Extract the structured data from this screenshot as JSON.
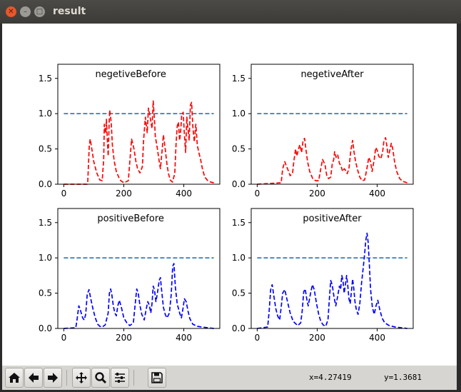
{
  "window": {
    "title": "result"
  },
  "chart_data": [
    {
      "type": "line",
      "title": "negetiveBefore",
      "xlim": [
        -20,
        520
      ],
      "ylim": [
        0,
        1.7
      ],
      "xticks": [
        0,
        200,
        400
      ],
      "yticks": [
        0.0,
        0.5,
        1.0,
        1.5
      ],
      "xtick_labels": [
        "0",
        "200",
        "400"
      ],
      "ytick_labels": [
        "0.0",
        "0.5",
        "1.0",
        "1.5"
      ],
      "title_placement": "inside-top-left",
      "series": [
        {
          "color": "#1f77b4",
          "style": "dashed",
          "x": [
            0,
            500
          ],
          "y": [
            1.0,
            1.0
          ]
        },
        {
          "color": "#ff0000",
          "style": "dashed",
          "x": [
            0,
            78,
            80,
            85,
            88,
            95,
            100,
            110,
            120,
            128,
            133,
            135,
            140,
            142,
            145,
            148,
            151,
            153,
            158,
            162,
            168,
            175,
            185,
            190,
            200,
            215,
            222,
            226,
            234,
            240,
            246,
            254,
            262,
            266,
            272,
            278,
            282,
            289,
            294,
            298,
            303,
            305,
            312,
            317,
            322,
            327,
            332,
            338,
            344,
            349,
            355,
            362,
            370,
            374,
            378,
            382,
            386,
            390,
            393,
            398,
            402,
            406,
            410,
            414,
            418,
            422,
            426,
            430,
            435,
            440,
            445,
            450,
            456,
            462,
            470,
            480,
            490,
            500
          ],
          "y": [
            0,
            0,
            0.04,
            0.55,
            0.64,
            0.46,
            0.32,
            0.16,
            0.06,
            0.05,
            0.35,
            0.85,
            0.72,
            0.92,
            0.63,
            0.4,
            0.85,
            1.05,
            0.88,
            0.55,
            0.33,
            0.18,
            0.08,
            0.05,
            0.02,
            0.05,
            0.42,
            0.64,
            0.5,
            0.33,
            0.22,
            0.16,
            0.25,
            0.62,
            0.95,
            0.73,
            1.08,
            0.92,
            0.79,
            1.18,
            0.85,
            0.68,
            0.5,
            0.35,
            0.22,
            0.45,
            0.7,
            0.5,
            0.28,
            0.15,
            0.06,
            0.03,
            0.15,
            0.55,
            0.82,
            0.88,
            0.62,
            0.78,
            0.98,
            1.02,
            0.7,
            0.45,
            0.95,
            0.78,
            0.62,
            1.12,
            1.16,
            0.82,
            0.6,
            0.85,
            0.55,
            0.45,
            0.35,
            0.22,
            0.1,
            0.05,
            0.03,
            0.02
          ]
        }
      ]
    },
    {
      "type": "line",
      "title": "negetiveAfter",
      "xlim": [
        -20,
        520
      ],
      "ylim": [
        0,
        1.7
      ],
      "xticks": [
        0,
        200,
        400
      ],
      "yticks": [
        0.0,
        0.5,
        1.0,
        1.5
      ],
      "xtick_labels": [
        "0",
        "200",
        "400"
      ],
      "ytick_labels": [
        "0.0",
        "0.5",
        "1.0",
        "1.5"
      ],
      "title_placement": "inside-top-center",
      "series": [
        {
          "color": "#1f77b4",
          "style": "dashed",
          "x": [
            0,
            500
          ],
          "y": [
            1.0,
            1.0
          ]
        },
        {
          "color": "#ff0000",
          "style": "dashed",
          "x": [
            0,
            80,
            85,
            92,
            96,
            103,
            110,
            118,
            122,
            128,
            132,
            138,
            142,
            148,
            153,
            158,
            163,
            168,
            175,
            185,
            195,
            205,
            212,
            218,
            226,
            232,
            238,
            245,
            250,
            255,
            258,
            263,
            268,
            274,
            280,
            285,
            290,
            294,
            300,
            306,
            312,
            318,
            323,
            328,
            335,
            342,
            350,
            358,
            365,
            372,
            378,
            383,
            390,
            395,
            400,
            405,
            412,
            418,
            422,
            428,
            432,
            437,
            442,
            447,
            452,
            458,
            465,
            475,
            485,
            500
          ],
          "y": [
            0,
            0.02,
            0.22,
            0.32,
            0.27,
            0.2,
            0.12,
            0.16,
            0.32,
            0.5,
            0.4,
            0.5,
            0.56,
            0.45,
            0.62,
            0.65,
            0.48,
            0.32,
            0.18,
            0.08,
            0.05,
            0.05,
            0.22,
            0.35,
            0.28,
            0.12,
            0.08,
            0.1,
            0.28,
            0.35,
            0.46,
            0.38,
            0.42,
            0.3,
            0.25,
            0.18,
            0.22,
            0.2,
            0.15,
            0.22,
            0.48,
            0.62,
            0.45,
            0.32,
            0.2,
            0.1,
            0.05,
            0.06,
            0.2,
            0.38,
            0.32,
            0.18,
            0.35,
            0.52,
            0.48,
            0.4,
            0.36,
            0.45,
            0.6,
            0.66,
            0.55,
            0.38,
            0.48,
            0.58,
            0.5,
            0.32,
            0.18,
            0.08,
            0.04,
            0.02
          ]
        }
      ]
    },
    {
      "type": "line",
      "title": "positiveBefore",
      "xlim": [
        -20,
        520
      ],
      "ylim": [
        0,
        1.7
      ],
      "xticks": [
        0,
        200,
        400
      ],
      "yticks": [
        0.0,
        0.5,
        1.0,
        1.5
      ],
      "xtick_labels": [
        "0",
        "200",
        "400"
      ],
      "ytick_labels": [
        "0.0",
        "0.5",
        "1.0",
        "1.5"
      ],
      "title_placement": "inside-top-left",
      "series": [
        {
          "color": "#1f77b4",
          "style": "dashed",
          "x": [
            0,
            500
          ],
          "y": [
            1.0,
            1.0
          ]
        },
        {
          "color": "#0000ff",
          "style": "dashed",
          "x": [
            0,
            40,
            45,
            50,
            54,
            58,
            63,
            68,
            73,
            78,
            84,
            90,
            97,
            105,
            113,
            120,
            128,
            138,
            148,
            152,
            156,
            160,
            165,
            170,
            175,
            180,
            185,
            192,
            200,
            210,
            220,
            232,
            238,
            243,
            248,
            254,
            260,
            268,
            275,
            280,
            285,
            290,
            294,
            298,
            302,
            307,
            312,
            318,
            322,
            326,
            332,
            338,
            344,
            352,
            358,
            363,
            367,
            372,
            378,
            386,
            392,
            398,
            402,
            408,
            414,
            420,
            430,
            445,
            460,
            480,
            500
          ],
          "y": [
            0,
            0.01,
            0.15,
            0.32,
            0.28,
            0.22,
            0.15,
            0.12,
            0.2,
            0.48,
            0.55,
            0.42,
            0.28,
            0.15,
            0.06,
            0.03,
            0.02,
            0.05,
            0.22,
            0.5,
            0.56,
            0.48,
            0.32,
            0.22,
            0.18,
            0.32,
            0.4,
            0.3,
            0.15,
            0.08,
            0.04,
            0.08,
            0.35,
            0.56,
            0.5,
            0.32,
            0.2,
            0.12,
            0.28,
            0.38,
            0.33,
            0.22,
            0.35,
            0.6,
            0.55,
            0.38,
            0.5,
            0.68,
            0.72,
            0.55,
            0.3,
            0.2,
            0.15,
            0.22,
            0.48,
            0.88,
            0.92,
            0.58,
            0.35,
            0.22,
            0.15,
            0.3,
            0.42,
            0.38,
            0.25,
            0.14,
            0.06,
            0.03,
            0.02,
            0.01,
            0.0
          ]
        }
      ]
    },
    {
      "type": "line",
      "title": "positiveAfter",
      "xlim": [
        -20,
        520
      ],
      "ylim": [
        0,
        1.7
      ],
      "xticks": [
        0,
        200,
        400
      ],
      "yticks": [
        0.0,
        0.5,
        1.0,
        1.5
      ],
      "xtick_labels": [
        "0",
        "200",
        "400"
      ],
      "ytick_labels": [
        "0.0",
        "0.5",
        "1.0",
        "1.5"
      ],
      "title_placement": "inside-top-center",
      "series": [
        {
          "color": "#1f77b4",
          "style": "dashed",
          "x": [
            0,
            500
          ],
          "y": [
            1.0,
            1.0
          ]
        },
        {
          "color": "#0000ff",
          "style": "dashed",
          "x": [
            0,
            35,
            40,
            45,
            50,
            56,
            62,
            68,
            75,
            80,
            85,
            92,
            100,
            110,
            120,
            135,
            145,
            150,
            155,
            160,
            165,
            170,
            178,
            184,
            190,
            198,
            205,
            212,
            220,
            228,
            236,
            240,
            245,
            250,
            256,
            262,
            268,
            274,
            278,
            282,
            286,
            290,
            294,
            298,
            302,
            306,
            310,
            314,
            318,
            322,
            326,
            330,
            336,
            342,
            348,
            354,
            358,
            362,
            366,
            370,
            374,
            378,
            384,
            390,
            396,
            402,
            408,
            416,
            425,
            440,
            460,
            480,
            500
          ],
          "y": [
            0,
            0.02,
            0.25,
            0.55,
            0.62,
            0.45,
            0.28,
            0.18,
            0.12,
            0.3,
            0.5,
            0.55,
            0.4,
            0.22,
            0.1,
            0.04,
            0.08,
            0.25,
            0.52,
            0.56,
            0.42,
            0.32,
            0.5,
            0.62,
            0.55,
            0.35,
            0.2,
            0.1,
            0.05,
            0.03,
            0.12,
            0.38,
            0.68,
            0.62,
            0.45,
            0.32,
            0.45,
            0.6,
            0.55,
            0.75,
            0.68,
            0.5,
            0.62,
            0.75,
            0.6,
            0.42,
            0.35,
            0.52,
            0.7,
            0.56,
            0.38,
            0.28,
            0.2,
            0.35,
            0.65,
            0.88,
            1.05,
            1.25,
            1.35,
            1.22,
            0.9,
            0.55,
            0.3,
            0.2,
            0.32,
            0.4,
            0.28,
            0.15,
            0.08,
            0.04,
            0.02,
            0.01,
            0.0
          ]
        }
      ]
    }
  ],
  "toolbar": {
    "buttons": [
      "home-icon",
      "back-icon",
      "forward-icon",
      "pan-icon",
      "zoom-icon",
      "configure-icon",
      "save-icon"
    ],
    "x_readout": "x=4.27419",
    "y_readout": "y=1.3681"
  }
}
